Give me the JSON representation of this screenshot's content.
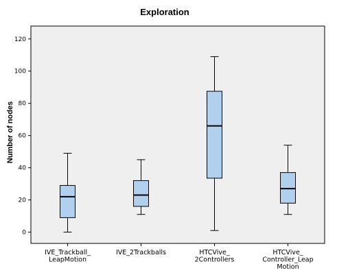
{
  "chart_data": {
    "type": "boxplot",
    "title": "Exploration",
    "xlabel": "",
    "ylabel": "Number of nodes",
    "ylim": [
      -7,
      128
    ],
    "yticks": [
      0,
      20,
      40,
      60,
      80,
      100,
      120
    ],
    "grid": false,
    "box_fill": "#b0d0ee",
    "plot_background": "#efefef",
    "categories": [
      [
        "IVE_Trackball_",
        "LeapMotion"
      ],
      [
        "IVE_2Trackballs"
      ],
      [
        "HTCVive_",
        "2Controllers"
      ],
      [
        "HTCVive_",
        "Controller_Leap",
        "Motion"
      ]
    ],
    "boxes": [
      {
        "min": 0,
        "q1": 9,
        "median": 22,
        "q3": 29,
        "max": 49
      },
      {
        "min": 11,
        "q1": 16,
        "median": 23,
        "q3": 32,
        "max": 45
      },
      {
        "min": 1,
        "q1": 33.5,
        "median": 66,
        "q3": 87.5,
        "max": 109
      },
      {
        "min": 11,
        "q1": 18,
        "median": 27,
        "q3": 37,
        "max": 54
      }
    ]
  }
}
